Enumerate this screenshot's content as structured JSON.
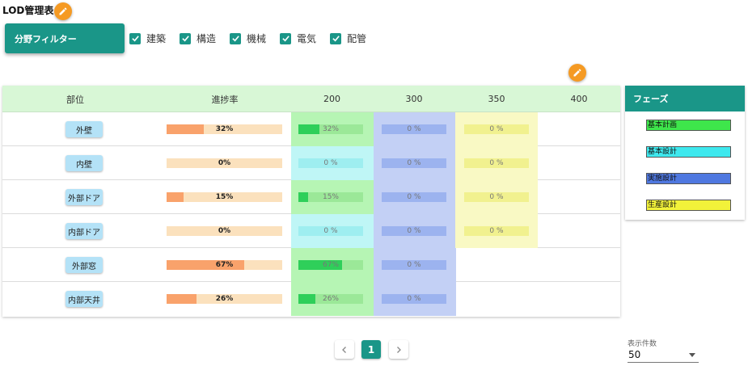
{
  "page": {
    "title": "LOD管理表"
  },
  "filter": {
    "button_label": "分野フィルター",
    "options": [
      {
        "label": "建築",
        "checked": true
      },
      {
        "label": "構造",
        "checked": true
      },
      {
        "label": "機械",
        "checked": true
      },
      {
        "label": "電気",
        "checked": true
      },
      {
        "label": "配管",
        "checked": true
      }
    ]
  },
  "icons": {
    "edit": "pencil-icon",
    "check": "check-icon",
    "prev": "chevron-left-icon",
    "next": "chevron-right-icon",
    "dropdown": "caret-down-icon"
  },
  "table": {
    "headers": {
      "part": "部位",
      "progress": "進捗率",
      "lod": [
        "200",
        "300",
        "350",
        "400"
      ]
    },
    "column_colors": {
      "200": "#b6f5b4",
      "300": "#c3d0f5",
      "350": "#f9f9c4"
    },
    "rows": [
      {
        "part": "外壁",
        "progress": 32,
        "progress_label": "32%",
        "lod": [
          {
            "pct": 32,
            "label": "32%",
            "bg": "#b6f5b4",
            "bar": "#9be898",
            "fill": "#2fcf5a"
          },
          {
            "pct": 0,
            "label": "0 %",
            "bg": "#c3d0f5",
            "bar": "#9cb3ef",
            "fill": "#4f78e0"
          },
          {
            "pct": 0,
            "label": "0 %",
            "bg": "#f9f9c4",
            "bar": "#f1f18f",
            "fill": "#e8e83a"
          }
        ]
      },
      {
        "part": "内壁",
        "progress": 0,
        "progress_label": "0%",
        "lod": [
          {
            "pct": 0,
            "label": "0 %",
            "bg": "#bff6f6",
            "bar": "#9eeef0",
            "fill": "#39d9e0"
          },
          {
            "pct": 0,
            "label": "0 %",
            "bg": "#c3d0f5",
            "bar": "#9cb3ef",
            "fill": "#4f78e0"
          },
          {
            "pct": 0,
            "label": "0 %",
            "bg": "#f9f9c4",
            "bar": "#f1f18f",
            "fill": "#e8e83a"
          }
        ]
      },
      {
        "part": "外部ドア",
        "progress": 15,
        "progress_label": "15%",
        "lod": [
          {
            "pct": 15,
            "label": "15%",
            "bg": "#b6f5b4",
            "bar": "#9be898",
            "fill": "#2fcf5a"
          },
          {
            "pct": 0,
            "label": "0 %",
            "bg": "#c3d0f5",
            "bar": "#9cb3ef",
            "fill": "#4f78e0"
          },
          {
            "pct": 0,
            "label": "0 %",
            "bg": "#f9f9c4",
            "bar": "#f1f18f",
            "fill": "#e8e83a"
          }
        ]
      },
      {
        "part": "内部ドア",
        "progress": 0,
        "progress_label": "0%",
        "lod": [
          {
            "pct": 0,
            "label": "0 %",
            "bg": "#bff6f6",
            "bar": "#9eeef0",
            "fill": "#39d9e0"
          },
          {
            "pct": 0,
            "label": "0 %",
            "bg": "#c3d0f5",
            "bar": "#9cb3ef",
            "fill": "#4f78e0"
          },
          {
            "pct": 0,
            "label": "0 %",
            "bg": "#f9f9c4",
            "bar": "#f1f18f",
            "fill": "#e8e83a"
          }
        ]
      },
      {
        "part": "外部窓",
        "progress": 67,
        "progress_label": "67%",
        "lod": [
          {
            "pct": 67,
            "label": "67%",
            "bg": "#b6f5b4",
            "bar": "#9be898",
            "fill": "#2fcf5a"
          },
          {
            "pct": 0,
            "label": "0 %",
            "bg": "#c3d0f5",
            "bar": "#9cb3ef",
            "fill": "#4f78e0"
          }
        ]
      },
      {
        "part": "内部天井",
        "progress": 26,
        "progress_label": "26%",
        "lod": [
          {
            "pct": 26,
            "label": "26%",
            "bg": "#b6f5b4",
            "bar": "#9be898",
            "fill": "#2fcf5a"
          },
          {
            "pct": 0,
            "label": "0 %",
            "bg": "#c3d0f5",
            "bar": "#9cb3ef",
            "fill": "#4f78e0"
          }
        ]
      }
    ]
  },
  "phases": {
    "title": "フェーズ",
    "items": [
      {
        "label": "基本計画",
        "color": "#3ee64b"
      },
      {
        "label": "基本設計",
        "color": "#3ee8ee"
      },
      {
        "label": "実施設計",
        "color": "#4f78e0"
      },
      {
        "label": "生産設計",
        "color": "#f2f23a"
      }
    ]
  },
  "pagination": {
    "current": "1",
    "page_size_label": "表示件数",
    "page_size": "50"
  }
}
